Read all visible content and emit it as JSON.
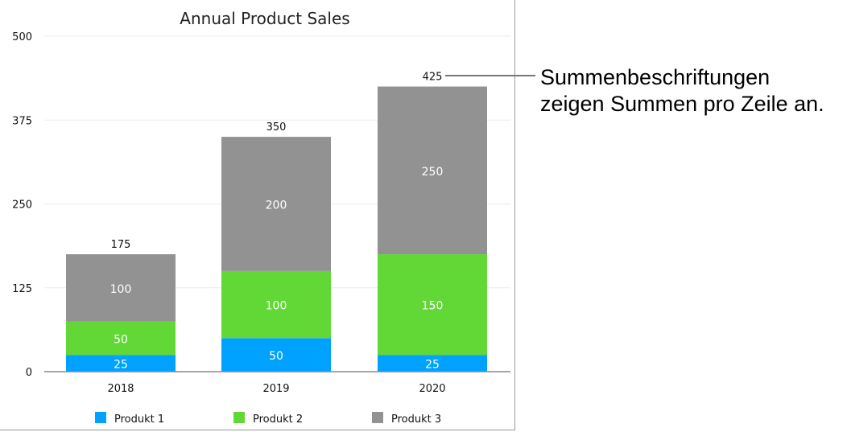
{
  "chart_data": {
    "type": "bar",
    "stacked": true,
    "title": "Annual Product Sales",
    "xlabel": "",
    "ylabel": "",
    "categories": [
      "2018",
      "2019",
      "2020"
    ],
    "ylim": [
      0,
      500
    ],
    "yticks": [
      0,
      125,
      250,
      375,
      500
    ],
    "grid": true,
    "legend_position": "bottom",
    "series": [
      {
        "name": "Produkt 1",
        "color": "#00a2ff",
        "values": [
          25,
          50,
          25
        ]
      },
      {
        "name": "Produkt 2",
        "color": "#61d836",
        "values": [
          50,
          100,
          150
        ]
      },
      {
        "name": "Produkt 3",
        "color": "#929292",
        "values": [
          100,
          200,
          250
        ]
      }
    ],
    "totals": [
      175,
      350,
      425
    ]
  },
  "annotation": {
    "line1": "Summenbeschriftungen",
    "line2": "zeigen Summen pro Zeile an."
  }
}
